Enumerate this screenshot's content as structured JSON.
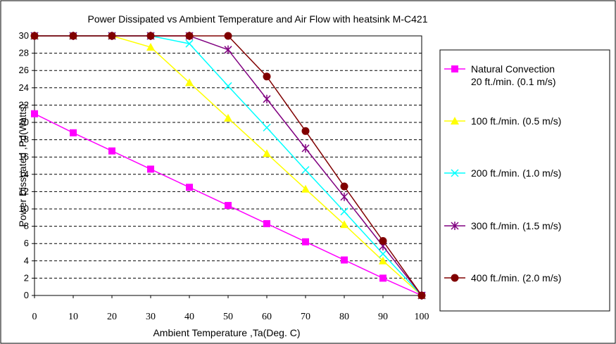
{
  "chart_data": {
    "type": "line",
    "title": "Power Dissipated vs Ambient Temperature and Air Flow with heatsink M-C421",
    "xlabel": "Ambient Temperature ,Ta(Deg. C)",
    "ylabel": "Power Disspated ,Pd(Watts)",
    "xlim": [
      0,
      100
    ],
    "ylim": [
      0,
      30
    ],
    "x_ticks": [
      "0",
      "10",
      "20",
      "30",
      "40",
      "50",
      "60",
      "70",
      "80",
      "90",
      "100"
    ],
    "y_ticks": [
      "0",
      "2",
      "4",
      "6",
      "8",
      "10",
      "12",
      "14",
      "16",
      "18",
      "20",
      "22",
      "24",
      "26",
      "28",
      "30"
    ],
    "grid": "horizontal-dashed",
    "legend_position": "right",
    "x": [
      0,
      10,
      20,
      30,
      40,
      50,
      60,
      70,
      80,
      90,
      100
    ],
    "series": [
      {
        "name": "Natural Convection",
        "name_line2": "20 ft./min. (0.1 m/s)",
        "color": "#ff00ff",
        "marker": "square",
        "values": [
          21.0,
          18.8,
          16.7,
          14.6,
          12.5,
          10.4,
          8.3,
          6.2,
          4.1,
          2.0,
          0
        ]
      },
      {
        "name": "100 ft./min. (0.5 m/s)",
        "color": "#ffff00",
        "marker": "triangle",
        "values": [
          30,
          30,
          30,
          28.7,
          24.6,
          20.5,
          16.4,
          12.3,
          8.2,
          4.0,
          0
        ]
      },
      {
        "name": "200 ft./min. (1.0 m/s)",
        "color": "#00ffff",
        "marker": "x",
        "values": [
          30,
          30,
          30,
          30,
          29.1,
          24.2,
          19.4,
          14.5,
          9.7,
          4.8,
          0
        ]
      },
      {
        "name": "300 ft./min. (1.5 m/s)",
        "color": "#800080",
        "marker": "star",
        "values": [
          30,
          30,
          30,
          30,
          30,
          28.4,
          22.7,
          17.0,
          11.4,
          5.7,
          0
        ]
      },
      {
        "name": "400 ft./min. (2.0 m/s)",
        "color": "#800000",
        "marker": "circle",
        "values": [
          30,
          30,
          30,
          30,
          30,
          30,
          25.3,
          19.0,
          12.6,
          6.3,
          0
        ]
      }
    ]
  }
}
